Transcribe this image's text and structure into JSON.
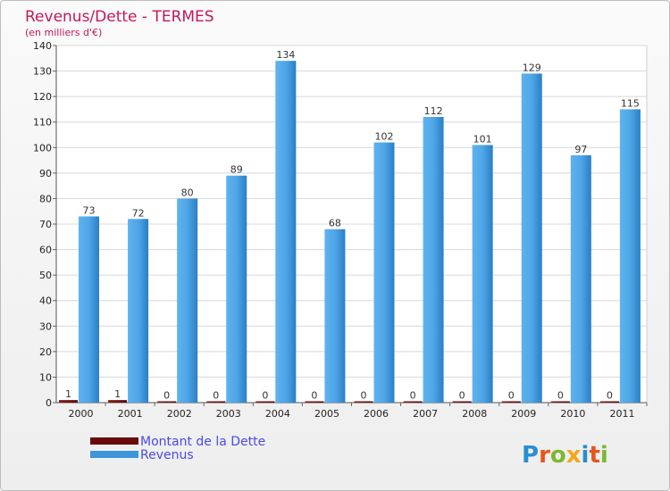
{
  "chart_data": {
    "type": "bar",
    "title": "Revenus/Dette - TERMES",
    "subtitle": "(en milliers d'€)",
    "categories": [
      "2000",
      "2001",
      "2002",
      "2003",
      "2004",
      "2005",
      "2006",
      "2007",
      "2008",
      "2009",
      "2010",
      "2011"
    ],
    "series": [
      {
        "name": "Montant de la Dette",
        "color": "#6b0a0a",
        "values": [
          1,
          1,
          0,
          0,
          0,
          0,
          0,
          0,
          0,
          0,
          0,
          0
        ]
      },
      {
        "name": "Revenus",
        "color": "#3d95dc",
        "values": [
          73,
          72,
          80,
          89,
          134,
          68,
          102,
          112,
          101,
          129,
          97,
          115
        ]
      }
    ],
    "ylim": [
      0,
      140
    ],
    "yticks": [
      0,
      10,
      20,
      30,
      40,
      50,
      60,
      70,
      80,
      90,
      100,
      110,
      120,
      130,
      140
    ],
    "grid": true,
    "legend": "bottom-left"
  },
  "brand": {
    "letters": [
      "P",
      "r",
      "o",
      "x",
      "i",
      "t",
      "i"
    ],
    "colors": [
      "#2a8ed1",
      "#e8541e",
      "#7cb82f",
      "#f2a81d",
      "#2a8ed1",
      "#e8541e",
      "#7cb82f"
    ]
  }
}
